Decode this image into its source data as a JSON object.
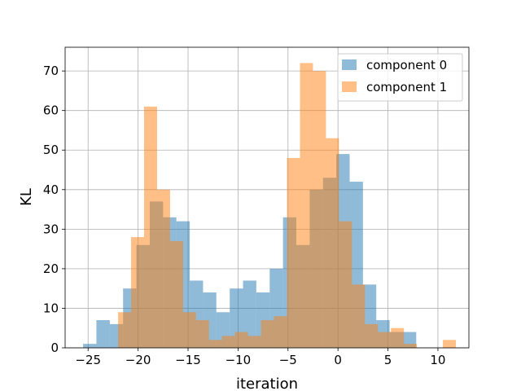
{
  "chart_data": {
    "type": "bar",
    "title": "",
    "xlabel": "iteration",
    "ylabel": "KL",
    "xlim": [
      -27.3,
      13.1
    ],
    "ylim": [
      0,
      76
    ],
    "xticks": [
      -25,
      -20,
      -15,
      -10,
      -5,
      0,
      5,
      10
    ],
    "xtick_labels": [
      "−25",
      "−20",
      "−15",
      "−10",
      "−5",
      "0",
      "5",
      "10"
    ],
    "yticks": [
      0,
      10,
      20,
      30,
      40,
      50,
      60,
      70
    ],
    "ytick_labels": [
      "0",
      "10",
      "20",
      "30",
      "40",
      "50",
      "60",
      "70"
    ],
    "grid": true,
    "legend_position": "top-right",
    "series": [
      {
        "name": "component 0",
        "color": "#1f77b4",
        "opacity": 0.5,
        "bins": [
          -25.5,
          -24.17,
          -22.83,
          -21.5,
          -20.17,
          -18.83,
          -17.5,
          -16.17,
          -14.83,
          -13.5,
          -12.17,
          -10.83,
          -9.5,
          -8.17,
          -6.83,
          -5.5,
          -4.17,
          -2.83,
          -1.5,
          -0.17,
          1.17,
          2.5,
          3.83,
          5.17,
          6.5,
          7.83
        ],
        "values": [
          1,
          7,
          6,
          15,
          26,
          37,
          33,
          32,
          17,
          14,
          9,
          15,
          17,
          14,
          20,
          33,
          26,
          40,
          43,
          49,
          42,
          16,
          7,
          4,
          4
        ]
      },
      {
        "name": "component 1",
        "color": "#ff7f0e",
        "opacity": 0.5,
        "bins": [
          -22.0,
          -20.7,
          -19.4,
          -18.1,
          -16.8,
          -15.5,
          -14.2,
          -12.9,
          -11.6,
          -10.3,
          -9.0,
          -7.7,
          -6.4,
          -5.1,
          -3.8,
          -2.5,
          -1.2,
          0.1,
          1.4,
          2.7,
          4.0,
          5.3,
          6.6,
          7.9,
          9.2,
          10.5,
          11.8
        ],
        "values": [
          9,
          28,
          61,
          40,
          27,
          9,
          7,
          2,
          3,
          4,
          3,
          7,
          8,
          48,
          72,
          70,
          53,
          32,
          16,
          6,
          4,
          5,
          1,
          0,
          0,
          2
        ]
      }
    ]
  }
}
